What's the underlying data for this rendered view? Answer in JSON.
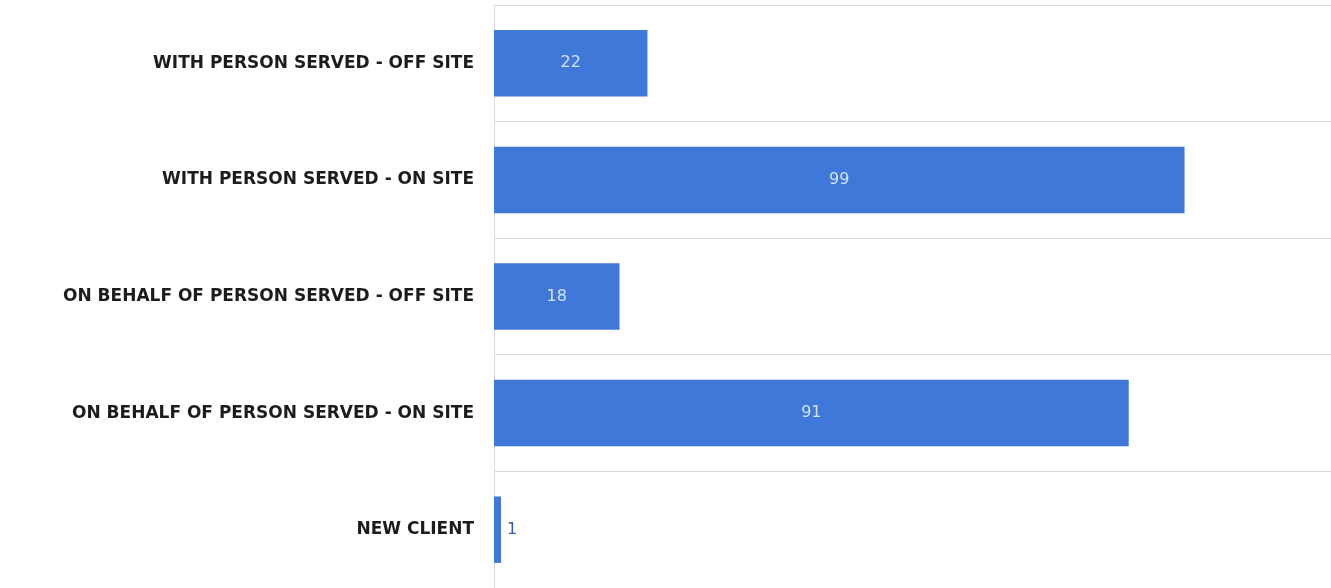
{
  "chart_data": {
    "type": "bar",
    "orientation": "horizontal",
    "categories": [
      "WITH PERSON SERVED - OFF SITE",
      "WITH PERSON SERVED - ON SITE",
      "ON BEHALF OF PERSON SERVED - OFF SITE",
      "ON BEHALF OF PERSON SERVED - ON SITE",
      "NEW CLIENT"
    ],
    "values": [
      22,
      99,
      18,
      91,
      1
    ],
    "color": "#3f78d8",
    "xlim": [
      0,
      120
    ],
    "data_labels": true,
    "grid": "y",
    "tick_labels": "y"
  }
}
